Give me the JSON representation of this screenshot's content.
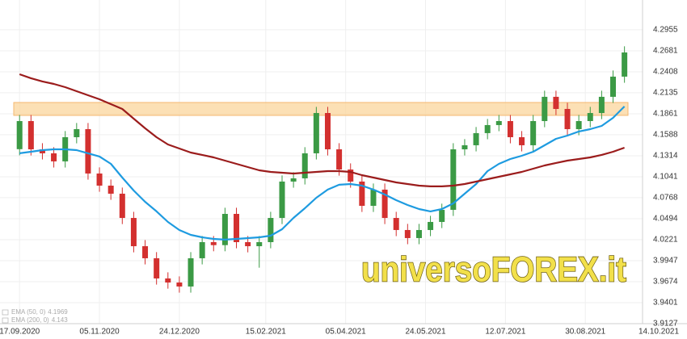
{
  "chart_data": {
    "type": "candlestick",
    "watermark": "universoFOREX.it",
    "x": [
      "17.09.2020",
      "24.09.2020",
      "01.10.2020",
      "08.10.2020",
      "15.10.2020",
      "22.10.2020",
      "29.10.2020",
      "05.11.2020",
      "12.11.2020",
      "19.11.2020",
      "26.11.2020",
      "03.12.2020",
      "10.12.2020",
      "17.12.2020",
      "24.12.2020",
      "31.12.2020",
      "07.01.2021",
      "14.01.2021",
      "21.01.2021",
      "28.01.2021",
      "04.02.2021",
      "11.02.2021",
      "18.02.2021",
      "25.02.2021",
      "04.03.2021",
      "11.03.2021",
      "18.03.2021",
      "25.03.2021",
      "01.04.2021",
      "08.04.2021",
      "15.04.2021",
      "22.04.2021",
      "29.04.2021",
      "06.05.2021",
      "13.05.2021",
      "20.05.2021",
      "27.05.2021",
      "03.06.2021",
      "10.06.2021",
      "17.06.2021",
      "24.06.2021",
      "01.07.2021",
      "08.07.2021",
      "15.07.2021",
      "22.07.2021",
      "29.07.2021",
      "05.08.2021",
      "12.08.2021",
      "19.08.2021",
      "26.08.2021",
      "02.09.2021",
      "09.09.2021",
      "16.09.2021",
      "23.09.2021"
    ],
    "open": [
      4.14,
      4.1766,
      4.1398,
      4.1346,
      4.1241,
      4.1556,
      4.1661,
      4.1083,
      4.0925,
      4.082,
      4.0504,
      4.0136,
      3.9979,
      3.9716,
      3.9663,
      3.9611,
      3.9979,
      4.0189,
      4.015,
      4.0557,
      4.0189,
      4.0136,
      4.0189,
      4.0504,
      4.0978,
      4.102,
      4.1346,
      4.1871,
      4.1398,
      4.1135,
      4.0978,
      4.0662,
      4.0873,
      4.0504,
      4.0347,
      4.0242,
      4.0347,
      4.0452,
      4.061,
      4.1398,
      4.1451,
      4.1609,
      4.1714,
      4.1766,
      4.1556,
      4.1451,
      4.1766,
      4.2082,
      4.1924,
      4.1661,
      4.1766,
      4.1871,
      4.2082,
      4.2345
    ],
    "high": [
      4.1846,
      4.1846,
      4.1478,
      4.1426,
      4.1636,
      4.1741,
      4.1741,
      4.1163,
      4.1005,
      4.09,
      4.0584,
      4.0216,
      4.0059,
      3.9796,
      3.9743,
      4.0059,
      4.0269,
      4.0269,
      4.0637,
      4.0637,
      4.0269,
      4.0269,
      4.0584,
      4.1058,
      4.11,
      4.1426,
      4.1951,
      4.1951,
      4.1478,
      4.1215,
      4.1058,
      4.0953,
      4.0953,
      4.0584,
      4.0427,
      4.0427,
      4.0532,
      4.069,
      4.1478,
      4.1531,
      4.1689,
      4.1794,
      4.1846,
      4.1846,
      4.1636,
      4.1846,
      4.2162,
      4.2162,
      4.2004,
      4.1846,
      4.1951,
      4.2162,
      4.2425,
      4.274
    ],
    "low": [
      4.132,
      4.1318,
      4.1266,
      4.1161,
      4.1161,
      4.1476,
      4.1003,
      4.0845,
      4.074,
      4.0424,
      4.0056,
      3.9899,
      3.9636,
      3.9583,
      3.9531,
      3.9531,
      3.9899,
      4.007,
      4.007,
      4.0109,
      4.0056,
      3.9856,
      4.0109,
      4.0424,
      4.0898,
      4.094,
      4.1266,
      4.1318,
      4.1055,
      4.0898,
      4.0582,
      4.0582,
      4.0424,
      4.0267,
      4.0162,
      4.0162,
      4.0267,
      4.0372,
      4.053,
      4.1318,
      4.1371,
      4.1529,
      4.1634,
      4.1476,
      4.1371,
      4.1371,
      4.1686,
      4.1844,
      4.1581,
      4.1581,
      4.1686,
      4.1791,
      4.2002,
      4.2265
    ],
    "close": [
      4.1766,
      4.1398,
      4.1346,
      4.1241,
      4.1556,
      4.1661,
      4.1083,
      4.0925,
      4.082,
      4.0504,
      4.0136,
      3.9979,
      3.9716,
      3.9663,
      3.9611,
      3.9979,
      4.0189,
      4.015,
      4.0557,
      4.0189,
      4.0136,
      4.0189,
      4.0504,
      4.0978,
      4.102,
      4.1346,
      4.1871,
      4.1398,
      4.1135,
      4.0978,
      4.0662,
      4.0873,
      4.0504,
      4.0347,
      4.0242,
      4.0347,
      4.0452,
      4.061,
      4.1398,
      4.1451,
      4.1609,
      4.1714,
      4.1766,
      4.1556,
      4.1451,
      4.1766,
      4.2082,
      4.1924,
      4.1661,
      4.1766,
      4.1871,
      4.2082,
      4.2345,
      4.266
    ],
    "up_color": "#3b9a45",
    "down_color": "#d3302f",
    "series": [
      {
        "name": "EMA (50, 0)",
        "last": 4.1969,
        "color": "#1e9be0",
        "values": [
          4.1346,
          4.1367,
          4.1388,
          4.1398,
          4.1398,
          4.1388,
          4.1346,
          4.1304,
          4.1209,
          4.103,
          4.0862,
          4.0715,
          4.0589,
          4.0452,
          4.0347,
          4.0284,
          4.0252,
          4.0231,
          4.0221,
          4.0231,
          4.0242,
          4.0252,
          4.0273,
          4.0357,
          4.0504,
          4.0631,
          4.0767,
          4.0873,
          4.0936,
          4.0946,
          4.0925,
          4.0873,
          4.0809,
          4.0736,
          4.0673,
          4.062,
          4.0589,
          4.062,
          4.0694,
          4.082,
          4.0946,
          4.1114,
          4.1209,
          4.1272,
          4.1314,
          4.1367,
          4.1451,
          4.1535,
          4.1577,
          4.163,
          4.1661,
          4.1703,
          4.1808,
          4.1956
        ]
      },
      {
        "name": "EMA (200, 0)",
        "last": 4.143,
        "color": "#9b1c1c",
        "values": [
          4.2376,
          4.2324,
          4.2282,
          4.225,
          4.2208,
          4.2155,
          4.2103,
          4.205,
          4.1987,
          4.1924,
          4.1798,
          4.1672,
          4.1556,
          4.1461,
          4.1409,
          4.1356,
          4.1325,
          4.1293,
          4.1251,
          4.1209,
          4.1167,
          4.1125,
          4.1104,
          4.1093,
          4.1083,
          4.1093,
          4.1104,
          4.1114,
          4.1114,
          4.1104,
          4.1062,
          4.103,
          4.0999,
          4.0967,
          4.0946,
          4.0925,
          4.0915,
          4.0915,
          4.0925,
          4.0946,
          4.0978,
          4.1009,
          4.1041,
          4.1072,
          4.1104,
          4.1146,
          4.1188,
          4.122,
          4.1251,
          4.1272,
          4.1293,
          4.1325,
          4.1367,
          4.1419
        ]
      }
    ],
    "zone": [
      4.184,
      4.2008
    ],
    "zone_color": "#fbd59c",
    "xlim": [
      "05.09.2020",
      "14.10.2021"
    ],
    "xticks": [
      "17.09.2020",
      "05.11.2020",
      "24.12.2020",
      "15.02.2021",
      "05.04.2021",
      "24.05.2021",
      "12.07.2021",
      "30.08.2021",
      "14.10.2021"
    ],
    "ylim": [
      3.9127,
      4.3238
    ],
    "yticks": [
      3.9127,
      3.9401,
      3.9674,
      3.9947,
      4.0221,
      4.0494,
      4.0768,
      4.1041,
      4.1314,
      4.1588,
      4.1861,
      4.2135,
      4.2408,
      4.2681,
      4.2955
    ],
    "grid": true
  }
}
